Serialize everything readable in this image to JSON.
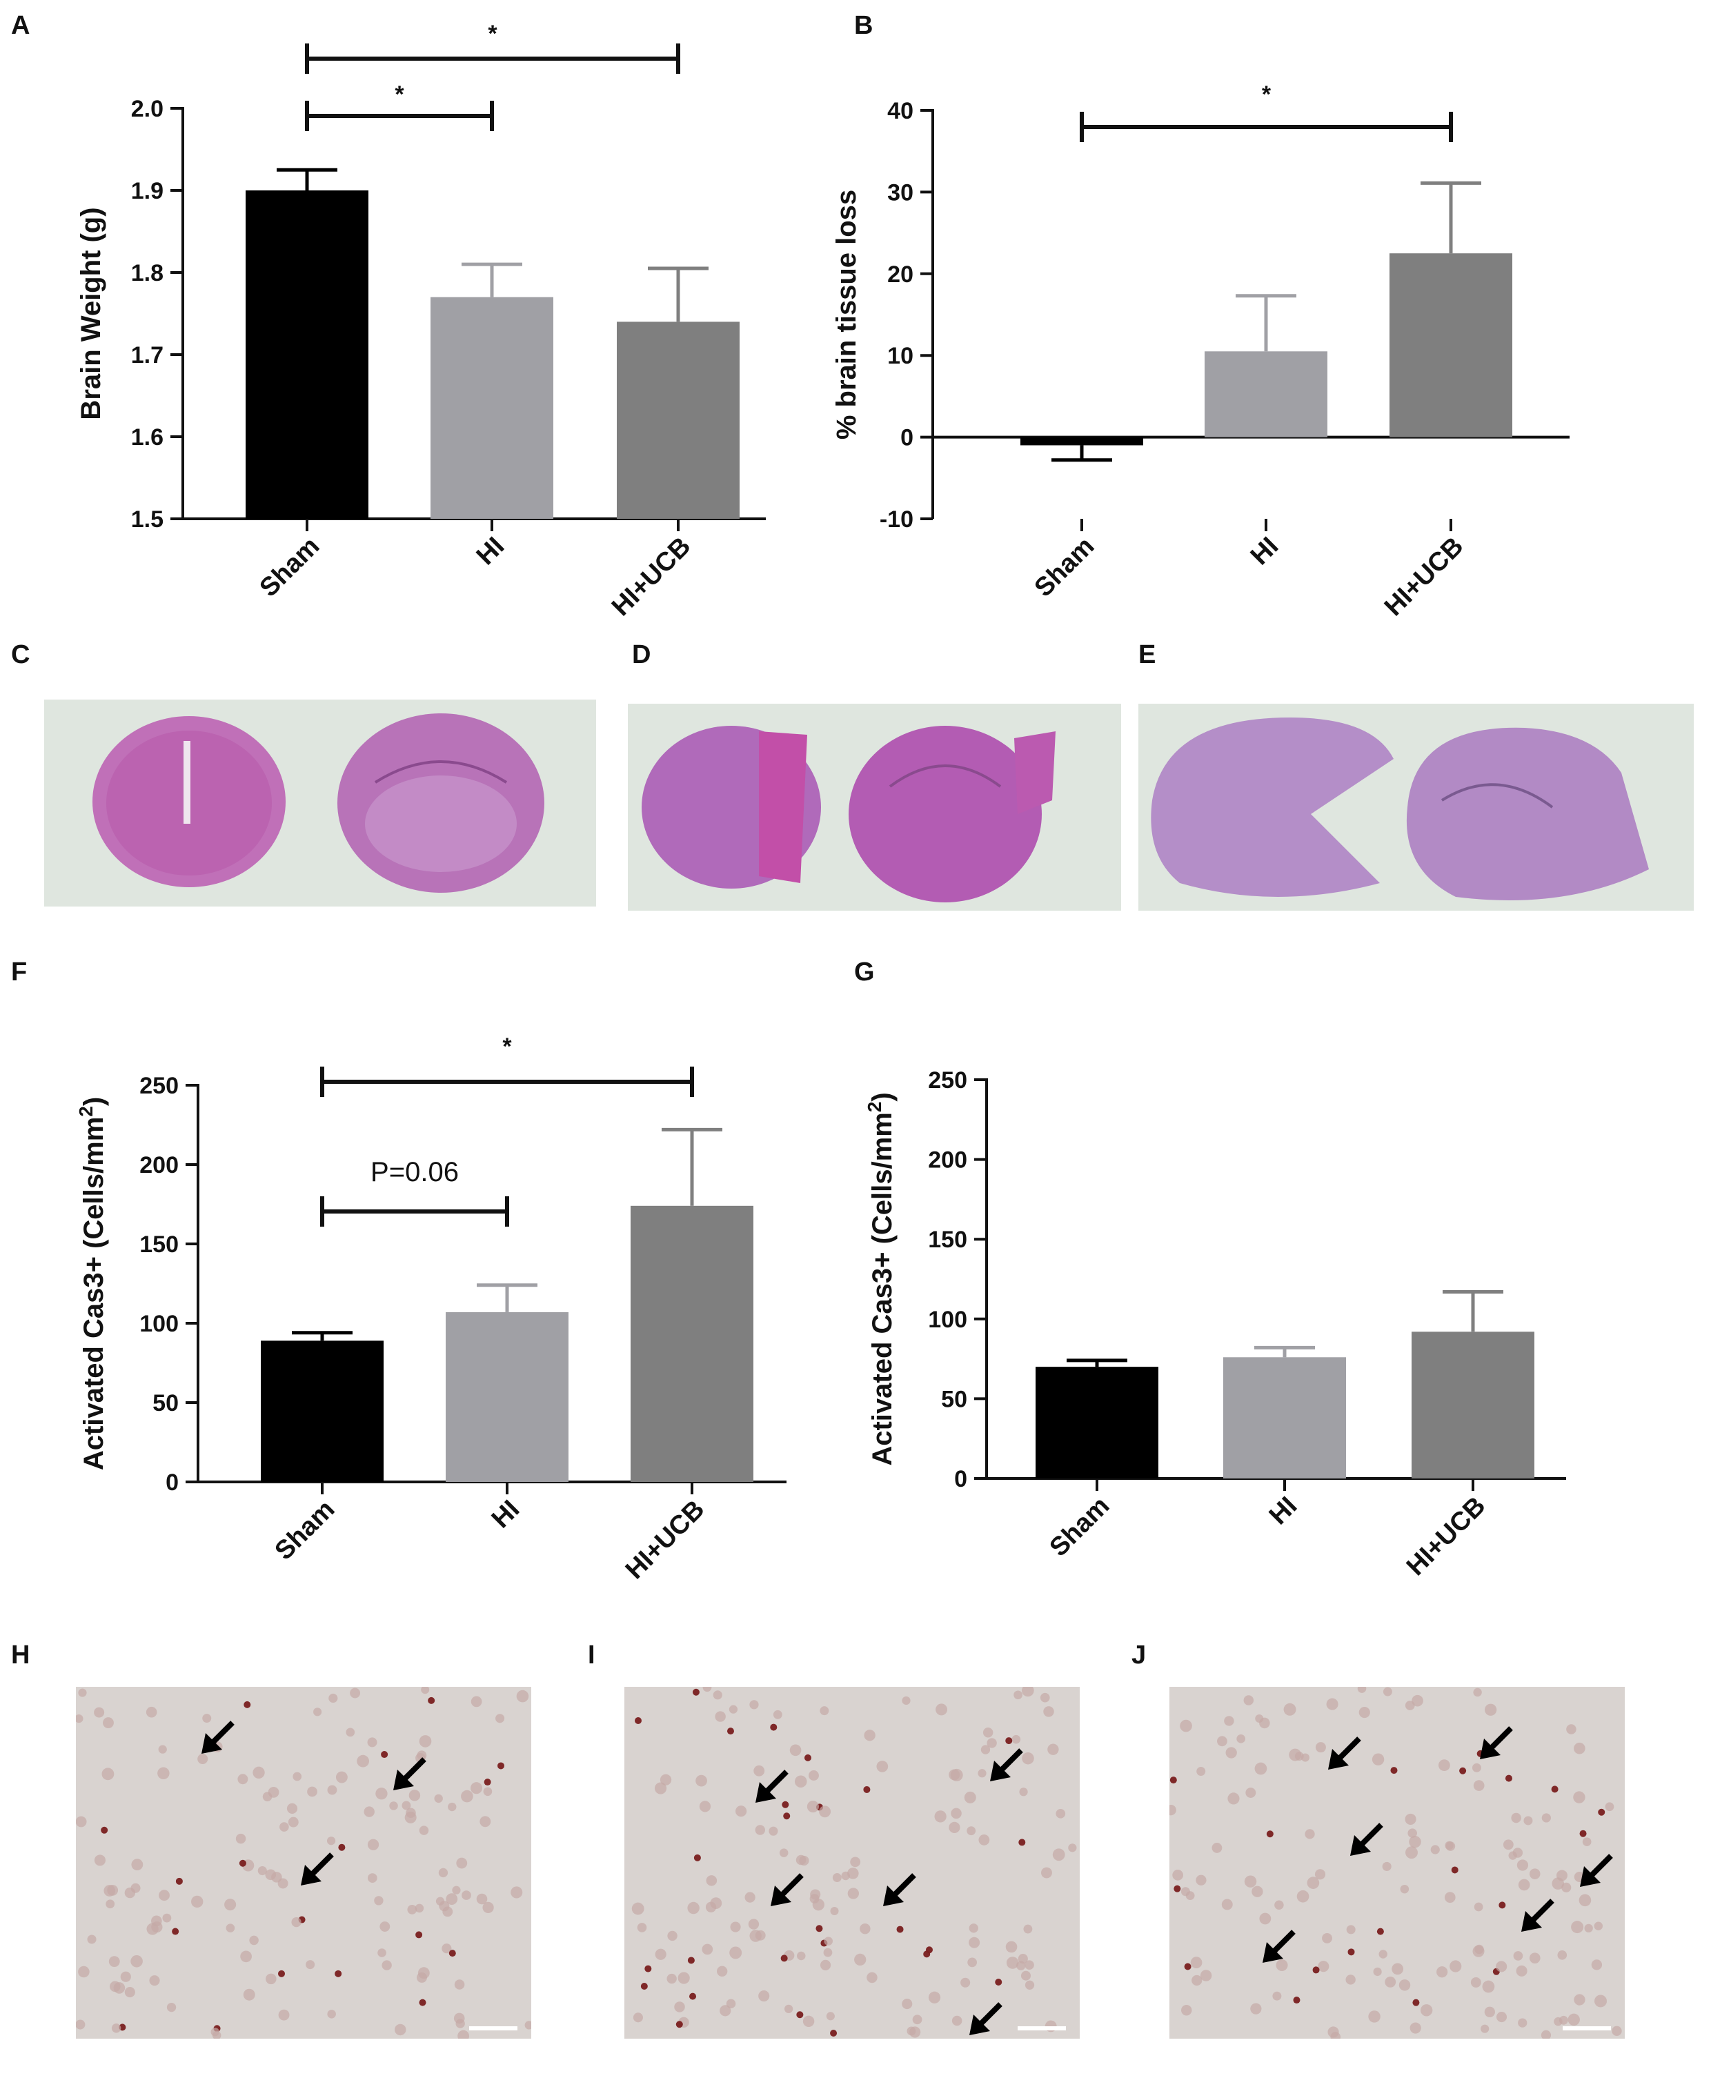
{
  "panels": {
    "A": "A",
    "B": "B",
    "C": "C",
    "D": "D",
    "E": "E",
    "F": "F",
    "G": "G",
    "H": "H",
    "I": "I",
    "J": "J"
  },
  "colors": {
    "sham": "#000000",
    "hi": "#a0a0a5",
    "hiucb": "#7f7f7f",
    "axis": "#111111"
  },
  "chart_data": [
    {
      "id": "A",
      "type": "bar",
      "categories": [
        "Sham",
        "HI",
        "HI+UCB"
      ],
      "values": [
        1.9,
        1.77,
        1.74
      ],
      "errors": [
        0.025,
        0.04,
        0.065
      ],
      "ylabel": "Brain Weight (g)",
      "ylim": [
        1.5,
        2.0
      ],
      "yticks": [
        "1.5",
        "1.6",
        "1.7",
        "1.8",
        "1.9",
        "2.0"
      ],
      "significance": [
        {
          "from": "Sham",
          "to": "HI+UCB",
          "label": "*"
        },
        {
          "from": "Sham",
          "to": "HI",
          "label": "*"
        }
      ]
    },
    {
      "id": "B",
      "type": "bar",
      "categories": [
        "Sham",
        "HI",
        "HI+UCB"
      ],
      "values": [
        -1.0,
        10.5,
        22.5
      ],
      "errors": [
        1.8,
        6.8,
        8.6
      ],
      "ylabel": "% brain tissue loss",
      "ylim": [
        -10,
        40
      ],
      "yticks": [
        "-10",
        "0",
        "10",
        "20",
        "30",
        "40"
      ],
      "significance": [
        {
          "from": "Sham",
          "to": "HI+UCB",
          "label": "*"
        }
      ]
    },
    {
      "id": "F",
      "type": "bar",
      "categories": [
        "Sham",
        "HI",
        "HI+UCB"
      ],
      "values": [
        89,
        107,
        174
      ],
      "errors": [
        5,
        17,
        48
      ],
      "ylabel": "Activated Cas3+ (Cells/mm",
      "ylabel_sup": "2",
      "ylabel_end": ")",
      "ylim": [
        0,
        250
      ],
      "yticks": [
        "0",
        "50",
        "100",
        "150",
        "200",
        "250"
      ],
      "significance": [
        {
          "from": "Sham",
          "to": "HI+UCB",
          "label": "*"
        },
        {
          "from": "Sham",
          "to": "HI",
          "label": "P=0.06"
        }
      ]
    },
    {
      "id": "G",
      "type": "bar",
      "categories": [
        "Sham",
        "HI",
        "HI+UCB"
      ],
      "values": [
        70,
        76,
        92
      ],
      "errors": [
        4,
        6,
        25
      ],
      "ylabel": "Activated Cas3+ (Cells/mm",
      "ylabel_sup": "2",
      "ylabel_end": ")",
      "ylim": [
        0,
        250
      ],
      "yticks": [
        "0",
        "50",
        "100",
        "150",
        "200",
        "250"
      ],
      "significance": []
    }
  ]
}
